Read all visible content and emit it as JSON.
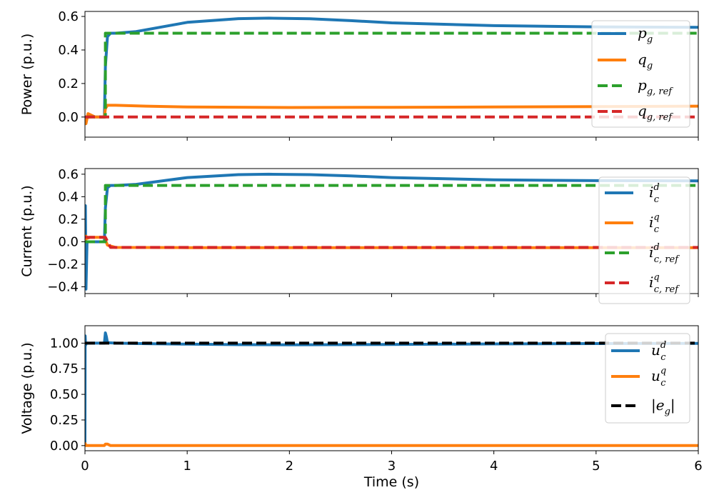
{
  "chart_data": [
    {
      "type": "line",
      "ylabel": "Power (p.u.)",
      "xlabel": "",
      "xlim": [
        0,
        6
      ],
      "ylim": [
        -0.12,
        0.63
      ],
      "yticks": [
        0.0,
        0.2,
        0.4,
        0.6
      ],
      "ytick_labels": [
        "0.0",
        "0.2",
        "0.4",
        "0.6"
      ],
      "legend_position": "top-right",
      "series": [
        {
          "name": "p_g",
          "label_main": "p",
          "label_sub": "g",
          "label_sup": "",
          "color": "#1f77b4",
          "dash": "solid",
          "x": [
            0,
            0.01,
            0.03,
            0.1,
            0.19,
            0.2,
            0.22,
            0.25,
            0.3,
            0.5,
            1.0,
            1.5,
            1.8,
            2.2,
            2.6,
            3.0,
            4.0,
            5.0,
            6.0
          ],
          "y": [
            0.0,
            -0.02,
            0.01,
            0.0,
            0.0,
            0.3,
            0.48,
            0.5,
            0.5,
            0.51,
            0.565,
            0.587,
            0.59,
            0.586,
            0.575,
            0.562,
            0.545,
            0.538,
            0.535
          ]
        },
        {
          "name": "q_g",
          "label_main": "q",
          "label_sub": "g",
          "label_sup": "",
          "color": "#ff7f0e",
          "dash": "solid",
          "x": [
            0,
            0.01,
            0.03,
            0.1,
            0.19,
            0.2,
            0.22,
            0.3,
            0.6,
            1.0,
            2.0,
            3.0,
            4.0,
            5.0,
            6.0
          ],
          "y": [
            0.0,
            -0.04,
            0.02,
            0.0,
            0.0,
            0.05,
            0.07,
            0.07,
            0.065,
            0.06,
            0.057,
            0.058,
            0.06,
            0.062,
            0.065
          ]
        },
        {
          "name": "p_g,ref",
          "label_main": "p",
          "label_sub": "g, ref",
          "label_sup": "",
          "color": "#2ca02c",
          "dash": "dashed",
          "x": [
            0,
            0.2,
            0.2,
            6.0
          ],
          "y": [
            0.0,
            0.0,
            0.5,
            0.5
          ]
        },
        {
          "name": "q_g,ref",
          "label_main": "q",
          "label_sub": "g, ref",
          "label_sup": "",
          "color": "#d62728",
          "dash": "dashed",
          "x": [
            0,
            6.0
          ],
          "y": [
            0.0,
            0.0
          ]
        }
      ]
    },
    {
      "type": "line",
      "ylabel": "Current (p.u.)",
      "xlabel": "",
      "xlim": [
        0,
        6
      ],
      "ylim": [
        -0.46,
        0.65
      ],
      "yticks": [
        -0.4,
        -0.2,
        0.0,
        0.2,
        0.4,
        0.6
      ],
      "ytick_labels": [
        "−0.4",
        "−0.2",
        "0.0",
        "0.2",
        "0.4",
        "0.6"
      ],
      "legend_position": "top-right",
      "series": [
        {
          "name": "i_c^d",
          "label_main": "i",
          "label_sub": "c",
          "label_sup": "d",
          "color": "#1f77b4",
          "dash": "solid",
          "x": [
            0,
            0.004,
            0.01,
            0.02,
            0.05,
            0.19,
            0.2,
            0.22,
            0.25,
            0.3,
            0.5,
            1.0,
            1.5,
            1.8,
            2.2,
            2.6,
            3.0,
            4.0,
            5.0,
            6.0
          ],
          "y": [
            0.0,
            0.32,
            -0.42,
            0.0,
            0.0,
            0.0,
            0.3,
            0.48,
            0.5,
            0.5,
            0.51,
            0.57,
            0.596,
            0.6,
            0.596,
            0.585,
            0.57,
            0.55,
            0.543,
            0.54
          ]
        },
        {
          "name": "i_c^q",
          "label_main": "i",
          "label_sub": "c",
          "label_sup": "q",
          "color": "#ff7f0e",
          "dash": "solid",
          "x": [
            0,
            0.01,
            0.02,
            0.05,
            0.19,
            0.22,
            0.3,
            1.0,
            2.0,
            3.0,
            4.0,
            5.0,
            6.0
          ],
          "y": [
            0.0,
            0.05,
            0.03,
            0.04,
            0.04,
            -0.03,
            -0.05,
            -0.052,
            -0.053,
            -0.053,
            -0.052,
            -0.052,
            -0.052
          ]
        },
        {
          "name": "i_c,ref^d",
          "label_main": "i",
          "label_sub": "c, ref",
          "label_sup": "d",
          "color": "#2ca02c",
          "dash": "dashed",
          "x": [
            0,
            0.2,
            0.2,
            6.0
          ],
          "y": [
            0.0,
            0.0,
            0.5,
            0.5
          ]
        },
        {
          "name": "i_c,ref^q",
          "label_main": "i",
          "label_sub": "c, ref",
          "label_sup": "q",
          "color": "#d62728",
          "dash": "dashed",
          "x": [
            0,
            0.2,
            0.25,
            6.0
          ],
          "y": [
            0.04,
            0.04,
            -0.05,
            -0.05
          ]
        }
      ]
    },
    {
      "type": "line",
      "ylabel": "Voltage (p.u.)",
      "xlabel": "Time (s)",
      "xlim": [
        0,
        6
      ],
      "ylim": [
        -0.05,
        1.17
      ],
      "yticks": [
        0.0,
        0.25,
        0.5,
        0.75,
        1.0
      ],
      "ytick_labels": [
        "0.00",
        "0.25",
        "0.50",
        "0.75",
        "1.00"
      ],
      "xticks": [
        0,
        1,
        2,
        3,
        4,
        5,
        6
      ],
      "xtick_labels": [
        "0",
        "1",
        "2",
        "3",
        "4",
        "5",
        "6"
      ],
      "legend_position": "top-right",
      "series": [
        {
          "name": "u_c^d",
          "label_main": "u",
          "label_sub": "c",
          "label_sup": "d",
          "color": "#1f77b4",
          "dash": "solid",
          "x": [
            0,
            0.002,
            0.006,
            0.012,
            0.05,
            0.19,
            0.2,
            0.21,
            0.22,
            0.3,
            0.6,
            1.0,
            1.5,
            2.0,
            3.0,
            4.0,
            5.0,
            6.0
          ],
          "y": [
            0.0,
            1.07,
            0.98,
            1.0,
            1.0,
            1.0,
            1.1,
            1.06,
            1.005,
            1.0,
            0.995,
            0.99,
            0.985,
            0.984,
            0.987,
            0.992,
            0.996,
            0.998
          ]
        },
        {
          "name": "u_c^q",
          "label_main": "u",
          "label_sub": "c",
          "label_sup": "q",
          "color": "#ff7f0e",
          "dash": "solid",
          "x": [
            0,
            0.002,
            0.01,
            0.19,
            0.2,
            0.22,
            0.25,
            6.0
          ],
          "y": [
            0.0,
            0.02,
            0.0,
            0.0,
            0.015,
            0.015,
            0.0,
            0.0
          ]
        },
        {
          "name": "|e_g|",
          "label_main": "|e",
          "label_sub": "g",
          "label_sup": "",
          "label_tail": "|",
          "color": "#000000",
          "dash": "dashed",
          "x": [
            0,
            6.0
          ],
          "y": [
            1.0,
            1.0
          ]
        }
      ]
    }
  ]
}
